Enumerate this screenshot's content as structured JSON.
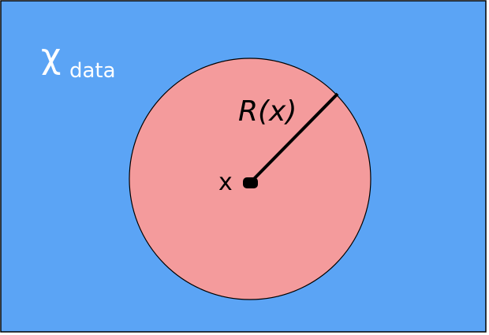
{
  "diagram": {
    "colors": {
      "background": "#5ba4f5",
      "ball_fill": "#f49b9c",
      "stroke": "#000000",
      "label_light": "#ffffff"
    },
    "space_label": {
      "symbol": "χ",
      "subscript": "data"
    },
    "radius_label": "R(x)",
    "center_label": "x"
  }
}
